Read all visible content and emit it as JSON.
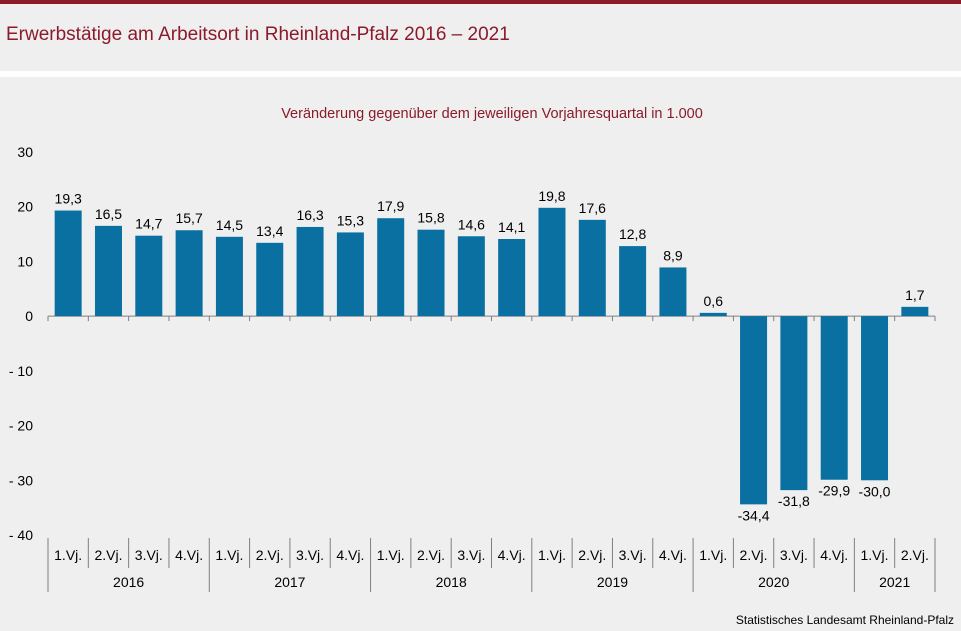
{
  "header": {
    "title": "Erwerbstätige am Arbeitsort in Rheinland-Pfalz 2016 – 2021"
  },
  "colors": {
    "accent": "#8b1a2b",
    "bar": "#0a70a1",
    "background": "#efefef"
  },
  "chart_data": {
    "type": "bar",
    "title": "Veränderung  gegenüber  dem jeweiligen  Vorjahresquartal   in 1.000",
    "xlabel": "",
    "ylabel": "",
    "ylim": [
      -40,
      30
    ],
    "yticks": [
      30,
      20,
      10,
      0,
      -10,
      -20,
      -30,
      -40
    ],
    "ytick_labels": [
      "30",
      "20",
      "10",
      "0",
      "- 10",
      "- 20",
      "- 30",
      "- 40"
    ],
    "categories": [
      "1.Vj.",
      "2.Vj.",
      "3.Vj.",
      "4.Vj.",
      "1.Vj.",
      "2.Vj.",
      "3.Vj.",
      "4.Vj.",
      "1.Vj.",
      "2.Vj.",
      "3.Vj.",
      "4.Vj.",
      "1.Vj.",
      "2.Vj.",
      "3.Vj.",
      "4.Vj.",
      "1.Vj.",
      "2.Vj.",
      "3.Vj.",
      "4.Vj.",
      "1.Vj.",
      "2.Vj."
    ],
    "groups": [
      {
        "label": "2016",
        "count": 4
      },
      {
        "label": "2017",
        "count": 4
      },
      {
        "label": "2018",
        "count": 4
      },
      {
        "label": "2019",
        "count": 4
      },
      {
        "label": "2020",
        "count": 4
      },
      {
        "label": "2021",
        "count": 2
      }
    ],
    "values": [
      19.3,
      16.5,
      14.7,
      15.7,
      14.5,
      13.4,
      16.3,
      15.3,
      17.9,
      15.8,
      14.6,
      14.1,
      19.8,
      17.6,
      12.8,
      8.9,
      0.6,
      -34.4,
      -31.8,
      -29.9,
      -30.0,
      1.7
    ],
    "value_labels": [
      "19,3",
      "16,5",
      "14,7",
      "15,7",
      "14,5",
      "13,4",
      "16,3",
      "15,3",
      "17,9",
      "15,8",
      "14,6",
      "14,1",
      "19,8",
      "17,6",
      "12,8",
      "8,9",
      "0,6",
      "-34,4",
      "-31,8",
      "-29,9",
      "-30,0",
      "1,7"
    ],
    "grid": false,
    "legend": "none"
  },
  "footer": {
    "source": "Statistisches Landesamt  Rheinland-Pfalz"
  }
}
